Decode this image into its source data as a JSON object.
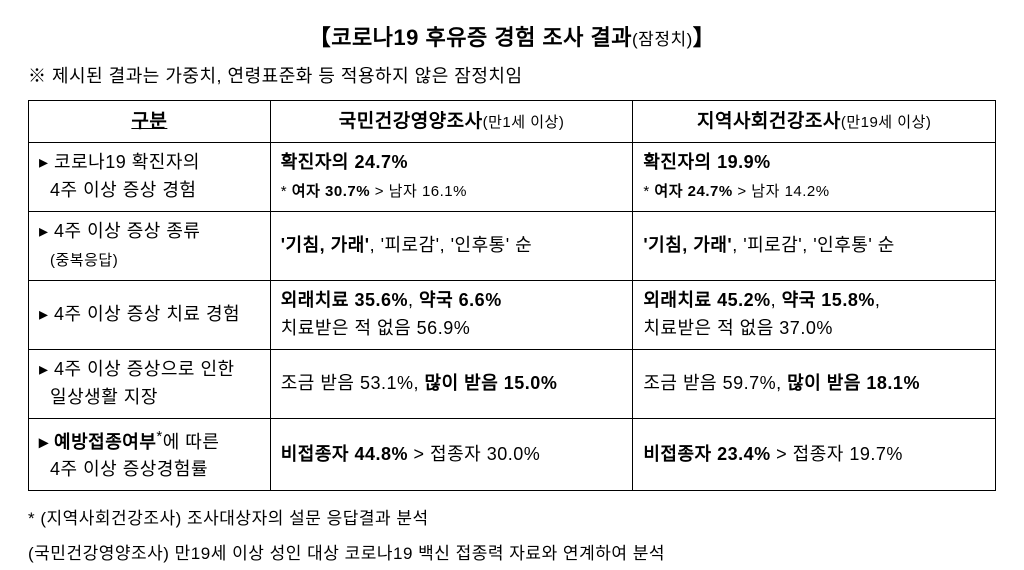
{
  "title_main": "【코로나19 후유증 경험 조사 결과",
  "title_sub": "(잠정치)",
  "title_close": "】",
  "top_note": "※ 제시된 결과는 가중치, 연령표준화 등 적용하지 않은 잠정치임",
  "headers": {
    "category": "구분",
    "col2_main": "국민건강영양조사",
    "col2_sub": "(만1세 이상)",
    "col3_main": "지역사회건강조사",
    "col3_sub": "(만19세 이상)"
  },
  "rows": [
    {
      "label_l1": "▸ 코로나19 확진자의",
      "label_l2": "4주 이상 증상 경험",
      "c2_l1_b": "확진자의 24.7%",
      "c2_l2_pre": "* ",
      "c2_l2_b": "여자 30.7%",
      "c2_l2_post": " > 남자 16.1%",
      "c3_l1_b": "확진자의 19.9%",
      "c3_l2_pre": "* ",
      "c3_l2_b": "여자 24.7%",
      "c3_l2_post": " > 남자 14.2%"
    },
    {
      "label_l1": "▸ 4주 이상 증상 종류",
      "label_l2": "(중복응답)",
      "c2_b": "'기침, 가래'",
      "c2_post": ", '피로감', '인후통' 순",
      "c3_b": "'기침, 가래'",
      "c3_post": ", '피로감', '인후통' 순"
    },
    {
      "label_l1": "▸ 4주 이상 증상 치료 경험",
      "c2_l1_b1": "외래치료 35.6%",
      "c2_l1_mid": ", ",
      "c2_l1_b2": "약국 6.6%",
      "c2_l2": "치료받은 적 없음 56.9%",
      "c3_l1_b1": "외래치료 45.2%",
      "c3_l1_mid": ", ",
      "c3_l1_b2": "약국 15.8%",
      "c3_l2_mid": ",",
      "c3_l2": "치료받은 적 없음 37.0%"
    },
    {
      "label_l1": "▸ 4주 이상 증상으로 인한",
      "label_l2": "일상생활 지장",
      "c2_pre": "조금 받음 53.1%, ",
      "c2_b": "많이 받음 15.0%",
      "c3_pre": "조금 받음 59.7%, ",
      "c3_b": "많이 받음 18.1%"
    },
    {
      "label_l1_b": "▸ 예방접종여부",
      "label_l1_sup": "*",
      "label_l1_post": "에 따른",
      "label_l2": "4주 이상 증상경험률",
      "c2_b": "비접종자 44.8%",
      "c2_post": " > 접종자 30.0%",
      "c3_b": "비접종자 23.4%",
      "c3_post": " > 접종자 19.7%"
    }
  ],
  "footnotes": {
    "f1": "* (지역사회건강조사) 조사대상자의 설문 응답결과 분석",
    "f2": "  (국민건강영양조사) 만19세 이상 성인 대상 코로나19 백신 접종력 자료와 연계하여 분석"
  }
}
